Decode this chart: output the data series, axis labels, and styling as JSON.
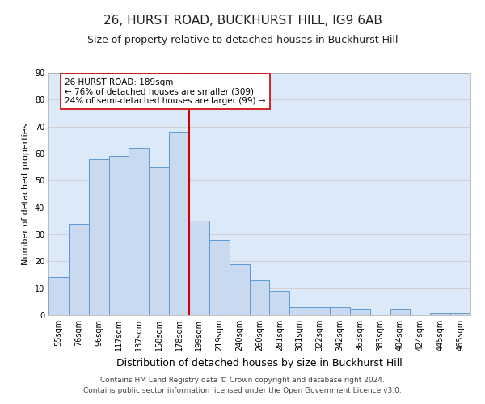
{
  "title": "26, HURST ROAD, BUCKHURST HILL, IG9 6AB",
  "subtitle": "Size of property relative to detached houses in Buckhurst Hill",
  "xlabel": "Distribution of detached houses by size in Buckhurst Hill",
  "ylabel": "Number of detached properties",
  "categories": [
    "55sqm",
    "76sqm",
    "96sqm",
    "117sqm",
    "137sqm",
    "158sqm",
    "178sqm",
    "199sqm",
    "219sqm",
    "240sqm",
    "260sqm",
    "281sqm",
    "301sqm",
    "322sqm",
    "342sqm",
    "363sqm",
    "383sqm",
    "404sqm",
    "424sqm",
    "445sqm",
    "465sqm"
  ],
  "values": [
    14,
    34,
    58,
    59,
    62,
    55,
    68,
    35,
    28,
    19,
    13,
    9,
    3,
    3,
    3,
    2,
    0,
    2,
    0,
    1,
    1
  ],
  "bar_color": "#c9d9f0",
  "bar_edge_color": "#5a9ad5",
  "vline_color": "#cc0000",
  "annotation_text": "26 HURST ROAD: 189sqm\n← 76% of detached houses are smaller (309)\n24% of semi-detached houses are larger (99) →",
  "annotation_box_color": "#ffffff",
  "annotation_box_edge_color": "#cc0000",
  "ylim": [
    0,
    90
  ],
  "yticks": [
    0,
    10,
    20,
    30,
    40,
    50,
    60,
    70,
    80,
    90
  ],
  "grid_color": "#cccccc",
  "background_color": "#dce9f8",
  "footer_line1": "Contains HM Land Registry data © Crown copyright and database right 2024.",
  "footer_line2": "Contains public sector information licensed under the Open Government Licence v3.0.",
  "title_fontsize": 11,
  "subtitle_fontsize": 9,
  "xlabel_fontsize": 9,
  "ylabel_fontsize": 8,
  "tick_fontsize": 7,
  "annotation_fontsize": 7.5,
  "footer_fontsize": 6.5
}
